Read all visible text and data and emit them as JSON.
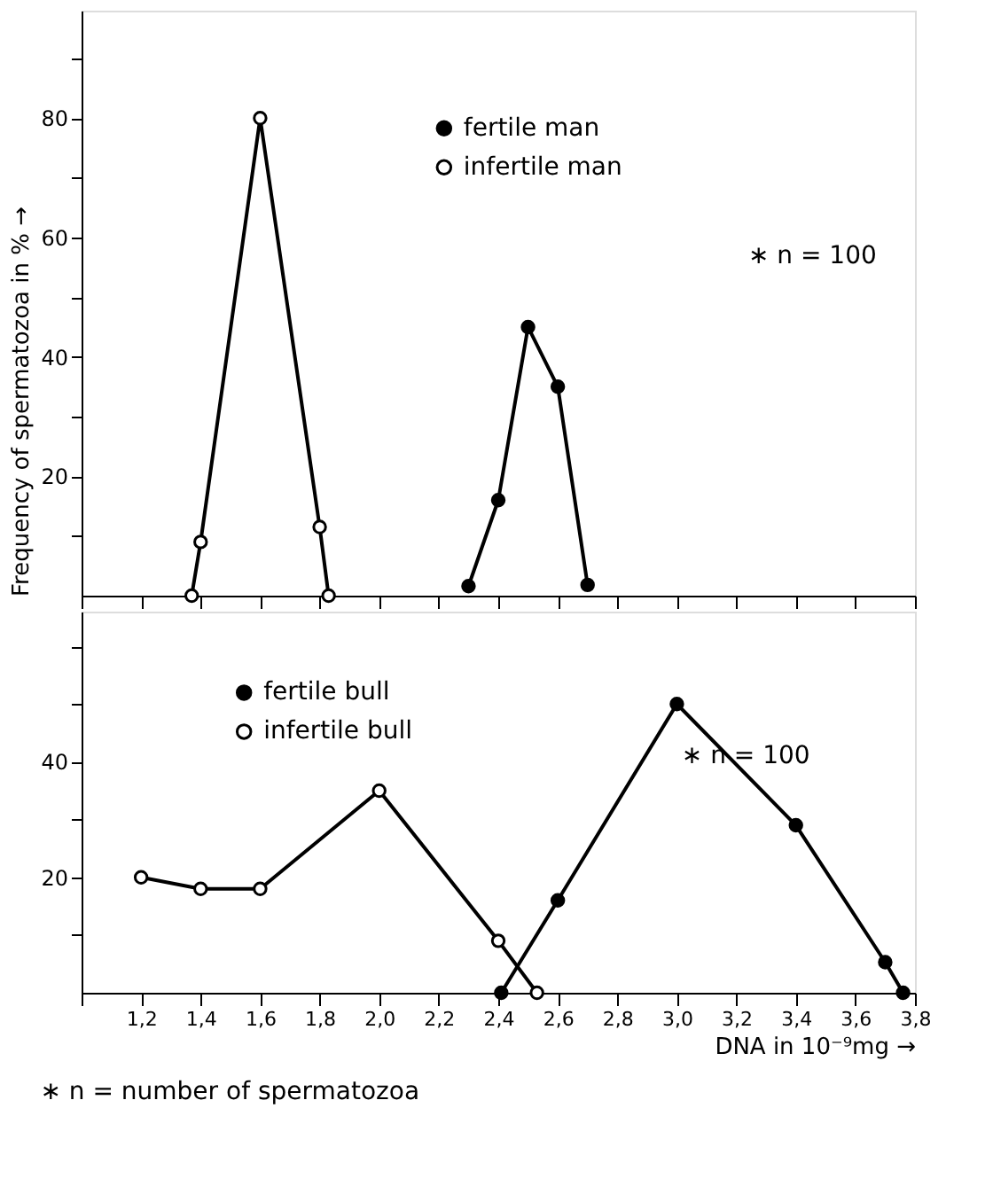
{
  "chart_data": [
    {
      "type": "line",
      "ylabel": "Frequency of spermatozoa in % →",
      "xlim": [
        1.0,
        3.8
      ],
      "xticks": [
        {
          "value": 1.0,
          "label": null
        },
        {
          "value": 1.2,
          "label": null
        },
        {
          "value": 1.4,
          "label": null
        },
        {
          "value": 1.6,
          "label": null
        },
        {
          "value": 1.8,
          "label": null
        },
        {
          "value": 2.0,
          "label": null
        },
        {
          "value": 2.2,
          "label": null
        },
        {
          "value": 2.4,
          "label": null
        },
        {
          "value": 2.6,
          "label": null
        },
        {
          "value": 2.8,
          "label": null
        },
        {
          "value": 3.0,
          "label": null
        },
        {
          "value": 3.2,
          "label": null
        },
        {
          "value": 3.4,
          "label": null
        },
        {
          "value": 3.6,
          "label": null
        },
        {
          "value": 3.8,
          "label": null
        }
      ],
      "ylim": [
        0,
        98
      ],
      "yticks": [
        {
          "value": 10,
          "label": null
        },
        20,
        {
          "value": 30,
          "label": null
        },
        40,
        {
          "value": 50,
          "label": null
        },
        60,
        {
          "value": 70,
          "label": null
        },
        80,
        {
          "value": 90,
          "label": null
        }
      ],
      "tick_labels": "y",
      "grid": false,
      "legend": "top right",
      "marker": "circle",
      "line_style": "solid",
      "annotations": [
        "∗ n = 100"
      ],
      "series": [
        {
          "name": "fertile man",
          "color": "#000000",
          "colors": [
            "#000000",
            "#000000",
            "#000000",
            "#000000",
            "#000000"
          ],
          "x": [
            2.3,
            2.4,
            2.5,
            2.6,
            2.7
          ],
          "values": [
            1.6,
            16,
            45,
            35,
            1.8
          ]
        },
        {
          "name": "infertile man",
          "color": "#000000",
          "colors": [
            "#ffffff",
            "#ffffff",
            "#ffffff",
            "#ffffff",
            "#ffffff"
          ],
          "x": [
            1.37,
            1.4,
            1.6,
            1.8,
            1.83
          ],
          "values": [
            0,
            9,
            80,
            11.5,
            0
          ]
        }
      ]
    },
    {
      "type": "line",
      "xlabel": "DNA in 10⁻⁹mg →",
      "xlim": [
        1.0,
        3.8
      ],
      "xticks": [
        {
          "value": 1.0,
          "label": null
        },
        {
          "value": 1.2,
          "label": "1,2"
        },
        {
          "value": 1.4,
          "label": "1,4"
        },
        {
          "value": 1.6,
          "label": "1,6"
        },
        {
          "value": 1.8,
          "label": "1,8"
        },
        {
          "value": 2.0,
          "label": "2,0"
        },
        {
          "value": 2.2,
          "label": "2,2"
        },
        {
          "value": 2.4,
          "label": "2,4"
        },
        {
          "value": 2.6,
          "label": "2,6"
        },
        {
          "value": 2.8,
          "label": "2,8"
        },
        {
          "value": 3.0,
          "label": "3,0"
        },
        {
          "value": 3.2,
          "label": "3,2"
        },
        {
          "value": 3.4,
          "label": "3,4"
        },
        {
          "value": 3.6,
          "label": "3,6"
        },
        {
          "value": 3.8,
          "label": "3,8"
        }
      ],
      "ylim": [
        0,
        66
      ],
      "yticks": [
        {
          "value": 10,
          "label": null
        },
        20,
        {
          "value": 30,
          "label": null
        },
        40,
        {
          "value": 50,
          "label": null
        },
        {
          "value": 60,
          "label": null
        }
      ],
      "grid": false,
      "legend": "top left",
      "marker": "circle",
      "line_style": "solid",
      "annotations": [
        "∗ n = 100",
        "∗ n = number of spermatozoa"
      ],
      "series": [
        {
          "name": "fertile bull",
          "color": "#000000",
          "colors": [
            "#000000",
            "#000000",
            "#000000",
            "#000000",
            "#000000",
            "#000000"
          ],
          "x": [
            2.41,
            2.6,
            3.0,
            3.4,
            3.7,
            3.76
          ],
          "values": [
            0,
            16,
            50,
            29,
            5.3,
            0
          ]
        },
        {
          "name": "infertile bull",
          "color": "#000000",
          "colors": [
            "#ffffff",
            "#ffffff",
            "#ffffff",
            "#ffffff",
            "#ffffff",
            "#ffffff"
          ],
          "x": [
            1.2,
            1.4,
            1.6,
            2.0,
            2.4,
            2.53
          ],
          "values": [
            20,
            18,
            18,
            35,
            9,
            0
          ]
        }
      ]
    }
  ]
}
